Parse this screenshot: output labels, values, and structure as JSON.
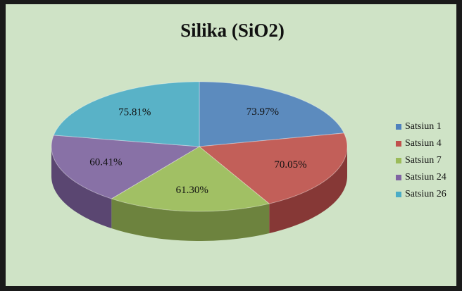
{
  "chart_data": {
    "type": "pie",
    "title": "Silika (SiO2)",
    "categories": [
      "Satsiun 1",
      "Satsiun 4",
      "Satsiun 7",
      "Satsiun 24",
      "Satsiun 26"
    ],
    "values": [
      73.97,
      70.05,
      61.3,
      60.41,
      75.81
    ],
    "value_labels": [
      "73.97%",
      "70.05%",
      "61.30%",
      "60.41%",
      "75.81%"
    ],
    "colors": [
      "#4f81bd",
      "#c0504d",
      "#9bbb59",
      "#8064a2",
      "#4bacc6"
    ],
    "legend": "right"
  }
}
